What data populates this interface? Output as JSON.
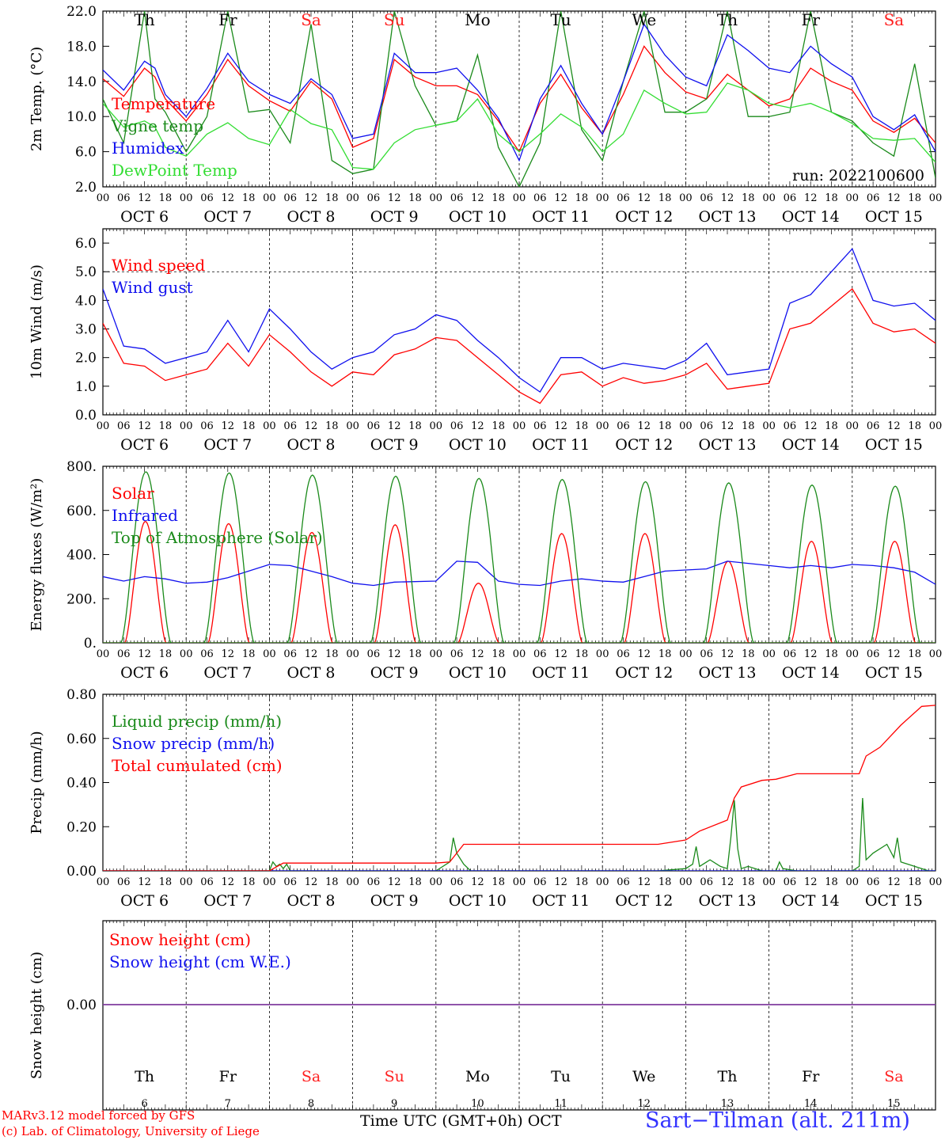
{
  "colors": {
    "red": "#ff0000",
    "green": "#1a8a1a",
    "blue": "#1010ee",
    "lightgreen": "#33dd33",
    "purple": "#7f3f9f",
    "weekend": "#ff2020",
    "weekday": "#000000"
  },
  "days": [
    {
      "abbr": "Th",
      "date": "OCT 6",
      "num": "6",
      "weekend": false
    },
    {
      "abbr": "Fr",
      "date": "OCT 7",
      "num": "7",
      "weekend": false
    },
    {
      "abbr": "Sa",
      "date": "OCT 8",
      "num": "8",
      "weekend": true
    },
    {
      "abbr": "Su",
      "date": "OCT 9",
      "num": "9",
      "weekend": true
    },
    {
      "abbr": "Mo",
      "date": "OCT 10",
      "num": "10",
      "weekend": false
    },
    {
      "abbr": "Tu",
      "date": "OCT 11",
      "num": "11",
      "weekend": false
    },
    {
      "abbr": "We",
      "date": "OCT 12",
      "num": "12",
      "weekend": false
    },
    {
      "abbr": "Th",
      "date": "OCT 13",
      "num": "13",
      "weekend": false
    },
    {
      "abbr": "Fr",
      "date": "OCT 14",
      "num": "14",
      "weekend": false
    },
    {
      "abbr": "Sa",
      "date": "OCT 15",
      "num": "15",
      "weekend": true
    }
  ],
  "hour_ticks": [
    "00",
    "06",
    "12",
    "18"
  ],
  "footer": {
    "model": "MARv3.12 model forced by GFS",
    "lab": "(c) Lab. of Climatology, University of Liege",
    "axis": "Time UTC (GMT+0h) OCT",
    "site": "Sart−Tilman (alt. 211m)"
  },
  "chart_data": [
    {
      "type": "line",
      "ylabel": "2m Temp. (°C)",
      "ylim": [
        2,
        22
      ],
      "yticks": [
        "2.0",
        "6.0",
        "10.0",
        "14.0",
        "18.0",
        "22.0"
      ],
      "annotation": "run: 2022100600",
      "x_unit": "hours since OCT 6 00 UTC",
      "xlim": [
        0,
        240
      ],
      "series": [
        {
          "name": "Temperature",
          "color": "red",
          "x": [
            0,
            6,
            12,
            15,
            18,
            24,
            30,
            36,
            42,
            48,
            54,
            60,
            66,
            72,
            78,
            84,
            90,
            96,
            102,
            108,
            114,
            120,
            126,
            132,
            138,
            144,
            150,
            156,
            162,
            168,
            174,
            180,
            186,
            192,
            198,
            204,
            210,
            216,
            222,
            228,
            234,
            240
          ],
          "y": [
            14.3,
            12.3,
            15.5,
            14.5,
            12,
            9.5,
            12.5,
            16.5,
            13.5,
            11.8,
            10.6,
            14,
            12,
            6.5,
            7.5,
            16.5,
            14.5,
            13.5,
            13.5,
            12.5,
            9.5,
            6,
            11.5,
            14.8,
            11,
            8,
            12.5,
            18,
            15,
            12.8,
            12,
            14.8,
            13,
            11.2,
            12,
            15.5,
            14,
            13,
            9.5,
            8.2,
            9.8,
            7
          ]
        },
        {
          "name": "Vigne temp",
          "color": "green",
          "x": [
            0,
            6,
            12,
            15,
            18,
            24,
            30,
            36,
            42,
            48,
            54,
            60,
            66,
            72,
            78,
            84,
            90,
            96,
            102,
            108,
            114,
            120,
            126,
            132,
            138,
            144,
            150,
            156,
            162,
            168,
            174,
            180,
            186,
            192,
            198,
            204,
            210,
            216,
            222,
            228,
            234,
            240
          ],
          "y": [
            12,
            7,
            22,
            12,
            10.5,
            6,
            10,
            22,
            10.5,
            10.8,
            7,
            20.5,
            5,
            3.5,
            4,
            22,
            13.5,
            9,
            9.5,
            17,
            6.5,
            2,
            7,
            22,
            8.5,
            5,
            14,
            22,
            10.5,
            10.5,
            12,
            22,
            10,
            10,
            10.5,
            22,
            10.5,
            9.5,
            7,
            5.5,
            16,
            3
          ]
        },
        {
          "name": "Humidex",
          "color": "blue",
          "x": [
            0,
            6,
            12,
            15,
            18,
            24,
            30,
            36,
            42,
            48,
            54,
            60,
            66,
            72,
            78,
            84,
            90,
            96,
            102,
            108,
            114,
            120,
            126,
            132,
            138,
            144,
            150,
            156,
            162,
            168,
            174,
            180,
            186,
            192,
            198,
            204,
            210,
            216,
            222,
            228,
            234,
            240
          ],
          "y": [
            15.3,
            13,
            16.3,
            15.5,
            12.5,
            10,
            13.2,
            17.2,
            14,
            12.5,
            11.5,
            14.3,
            12.5,
            7.5,
            8,
            17.2,
            15,
            15,
            15.5,
            13,
            9.8,
            5,
            12,
            15.8,
            11.5,
            8,
            14,
            20.5,
            17,
            14.5,
            13.5,
            19.3,
            17.5,
            15.5,
            15,
            18,
            16,
            14.5,
            10,
            8.5,
            10.2,
            6
          ]
        },
        {
          "name": "DewPoint Temp",
          "color": "lightgreen",
          "x": [
            0,
            6,
            12,
            15,
            18,
            24,
            30,
            36,
            42,
            48,
            54,
            60,
            66,
            72,
            78,
            84,
            90,
            96,
            102,
            108,
            114,
            120,
            126,
            132,
            138,
            144,
            150,
            156,
            162,
            168,
            174,
            180,
            186,
            192,
            198,
            204,
            210,
            216,
            222,
            228,
            234,
            240
          ],
          "y": [
            11.5,
            8.8,
            9.5,
            8.8,
            6.5,
            5.5,
            8,
            9.3,
            7.5,
            6.8,
            10.8,
            9.2,
            8.5,
            4.2,
            4,
            7,
            8.5,
            9,
            9.5,
            12,
            8,
            6,
            8,
            10.3,
            8.8,
            6,
            8,
            13,
            11.5,
            10.3,
            10.5,
            13.8,
            13,
            11.5,
            11,
            11.5,
            10.5,
            9.2,
            7.5,
            7.3,
            7.5,
            4.8
          ]
        }
      ]
    },
    {
      "type": "line",
      "ylabel": "10m Wind (m/s)",
      "ylim": [
        0,
        6.5
      ],
      "yticks": [
        "0.0",
        "1.0",
        "2.0",
        "3.0",
        "4.0",
        "5.0",
        "6.0"
      ],
      "reference_line": 5,
      "x_unit": "hours since OCT 6 00 UTC",
      "xlim": [
        0,
        240
      ],
      "series": [
        {
          "name": "Wind speed",
          "color": "red",
          "x": [
            0,
            6,
            12,
            18,
            24,
            30,
            36,
            42,
            48,
            54,
            60,
            66,
            72,
            78,
            84,
            90,
            96,
            102,
            108,
            114,
            120,
            126,
            132,
            138,
            144,
            150,
            156,
            162,
            168,
            174,
            180,
            186,
            192,
            198,
            204,
            210,
            216,
            222,
            228,
            234,
            240
          ],
          "y": [
            3.2,
            1.8,
            1.7,
            1.2,
            1.4,
            1.6,
            2.5,
            1.7,
            2.8,
            2.2,
            1.5,
            1.0,
            1.5,
            1.4,
            2.1,
            2.3,
            2.7,
            2.6,
            2.0,
            1.4,
            0.8,
            0.4,
            1.4,
            1.5,
            1.0,
            1.3,
            1.1,
            1.2,
            1.4,
            1.8,
            0.9,
            1.0,
            1.1,
            3.0,
            3.2,
            3.8,
            4.4,
            3.2,
            2.9,
            3.0,
            2.5
          ]
        },
        {
          "name": "Wind gust",
          "color": "blue",
          "x": [
            0,
            6,
            12,
            18,
            24,
            30,
            36,
            42,
            48,
            54,
            60,
            66,
            72,
            78,
            84,
            90,
            96,
            102,
            108,
            114,
            120,
            126,
            132,
            138,
            144,
            150,
            156,
            162,
            168,
            174,
            180,
            186,
            192,
            198,
            204,
            210,
            216,
            222,
            228,
            234,
            240
          ],
          "y": [
            4.4,
            2.4,
            2.3,
            1.8,
            2.0,
            2.2,
            3.3,
            2.2,
            3.7,
            3.0,
            2.2,
            1.6,
            2.0,
            2.2,
            2.8,
            3.0,
            3.5,
            3.3,
            2.6,
            2.0,
            1.3,
            0.8,
            2.0,
            2.0,
            1.6,
            1.8,
            1.7,
            1.6,
            1.9,
            2.5,
            1.4,
            1.5,
            1.6,
            3.9,
            4.2,
            5.0,
            5.8,
            4.0,
            3.8,
            3.9,
            3.3
          ]
        }
      ]
    },
    {
      "type": "line",
      "ylabel": "Energy fluxes (W/m²)",
      "ylim": [
        0,
        800
      ],
      "yticks": [
        "0.",
        "200.",
        "400.",
        "600.",
        "800."
      ],
      "x_unit": "hours since OCT 6 00 UTC",
      "xlim": [
        0,
        240
      ],
      "series": [
        {
          "name": "Solar",
          "color": "red",
          "daily_peaks": [
            550,
            540,
            500,
            535,
            270,
            495,
            495,
            370,
            460,
            460
          ]
        },
        {
          "name": "Infrared",
          "color": "blue",
          "x": [
            0,
            6,
            12,
            18,
            24,
            30,
            36,
            48,
            54,
            60,
            66,
            72,
            78,
            84,
            96,
            102,
            108,
            114,
            120,
            126,
            132,
            138,
            144,
            150,
            156,
            162,
            168,
            174,
            180,
            186,
            192,
            198,
            204,
            210,
            216,
            222,
            228,
            234,
            240
          ],
          "y": [
            300,
            280,
            300,
            290,
            270,
            275,
            295,
            355,
            350,
            325,
            300,
            270,
            260,
            275,
            280,
            370,
            365,
            280,
            265,
            260,
            280,
            290,
            280,
            275,
            300,
            325,
            330,
            335,
            370,
            360,
            350,
            340,
            350,
            340,
            355,
            350,
            340,
            320,
            265
          ]
        },
        {
          "name": "Top of Atmosphere (Solar)",
          "color": "green",
          "daily_peaks": [
            775,
            770,
            760,
            755,
            745,
            740,
            730,
            725,
            715,
            710
          ]
        }
      ]
    },
    {
      "type": "line",
      "ylabel": "Precip (mm/h)",
      "ylim": [
        0,
        0.8
      ],
      "yticks": [
        "0.00",
        "0.20",
        "0.40",
        "0.60",
        "0.80"
      ],
      "x_unit": "hours since OCT 6 00 UTC",
      "xlim": [
        0,
        240
      ],
      "series": [
        {
          "name": "Liquid precip (mm/h)",
          "color": "green",
          "x": [
            0,
            48,
            49,
            50,
            51,
            52,
            53,
            54,
            96,
            100,
            101,
            102,
            104,
            106,
            160,
            168,
            170,
            171,
            172,
            175,
            178,
            180,
            181,
            182,
            183,
            184,
            186,
            190,
            194,
            195,
            196,
            200,
            216,
            218,
            219,
            220,
            222,
            226,
            228,
            229,
            230,
            234,
            238,
            240
          ],
          "y": [
            0,
            0,
            0.04,
            0.02,
            0.03,
            0.01,
            0.03,
            0,
            0,
            0.04,
            0.15,
            0.08,
            0.03,
            0,
            0,
            0.01,
            0.03,
            0.11,
            0.02,
            0.05,
            0.02,
            0.01,
            0.15,
            0.32,
            0.1,
            0.01,
            0.02,
            0,
            0,
            0.04,
            0.01,
            0,
            0,
            0.02,
            0.33,
            0.05,
            0.08,
            0.12,
            0.06,
            0.15,
            0.04,
            0.02,
            0,
            0
          ]
        },
        {
          "name": "Snow precip (mm/h)",
          "color": "blue",
          "x": [
            0,
            240
          ],
          "y": [
            0,
            0
          ]
        },
        {
          "name": "Total cumulated (cm)",
          "color": "red",
          "x": [
            0,
            48,
            52,
            96,
            100,
            104,
            110,
            160,
            168,
            172,
            180,
            182,
            184,
            190,
            194,
            200,
            218,
            220,
            224,
            230,
            236,
            240
          ],
          "y": [
            0,
            0,
            0.035,
            0.035,
            0.04,
            0.12,
            0.12,
            0.12,
            0.14,
            0.18,
            0.23,
            0.33,
            0.38,
            0.41,
            0.415,
            0.44,
            0.44,
            0.52,
            0.56,
            0.66,
            0.745,
            0.75
          ]
        }
      ]
    },
    {
      "type": "line",
      "ylabel": "Snow height (cm)",
      "yticks": [
        "0.00"
      ],
      "x_unit": "hours since OCT 6 00 UTC",
      "xlim": [
        0,
        240
      ],
      "series": [
        {
          "name": "Snow height (cm)",
          "color": "red",
          "x": [
            0,
            240
          ],
          "y": [
            0,
            0
          ]
        },
        {
          "name": "Snow height (cm W.E.)",
          "color": "blue",
          "x": [
            0,
            240
          ],
          "y": [
            0,
            0
          ]
        }
      ]
    }
  ]
}
